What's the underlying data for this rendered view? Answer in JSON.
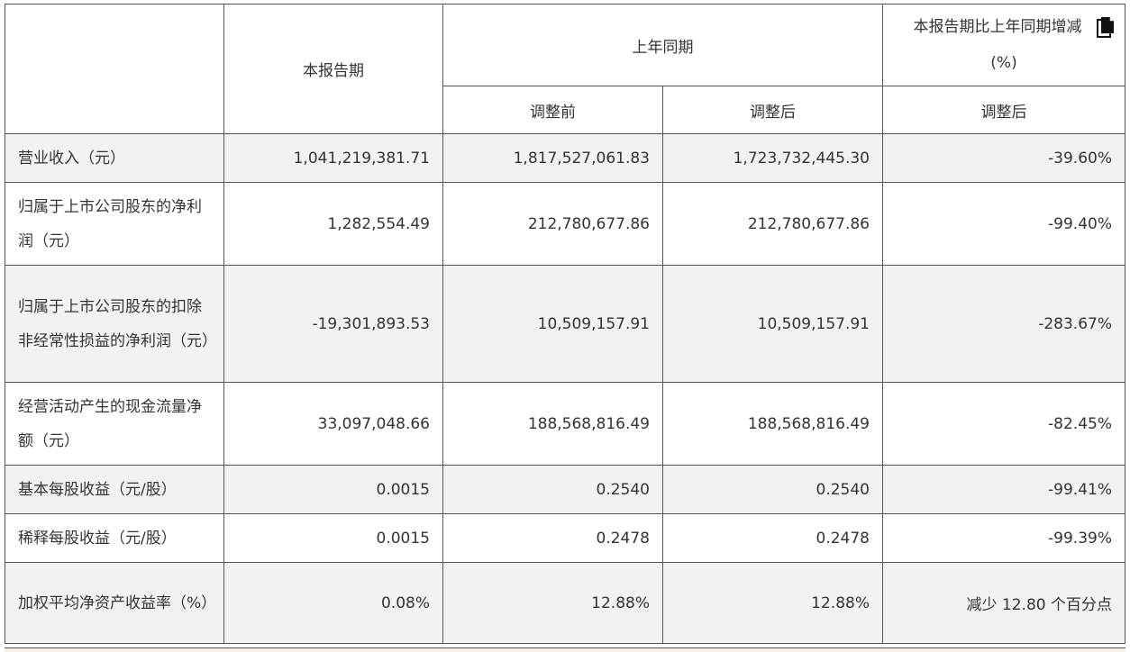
{
  "header": {
    "current_period": "本报告期",
    "same_period_last_year": "上年同期",
    "before_adjustment": "调整前",
    "after_adjustment": "调整后",
    "yoy_change": "本报告期比上年同期增减",
    "yoy_change_unit": "(%)",
    "yoy_after_adjustment": "调整后"
  },
  "rows": [
    {
      "label": "营业收入（元）",
      "current": "1,041,219,381.71",
      "prev_before": "1,817,527,061.83",
      "prev_after": "1,723,732,445.30",
      "change": "-39.60%"
    },
    {
      "label": "归属于上市公司股东的净利润（元）",
      "current": "1,282,554.49",
      "prev_before": "212,780,677.86",
      "prev_after": "212,780,677.86",
      "change": "-99.40%"
    },
    {
      "label": "归属于上市公司股东的扣除非经常性损益的净利润（元）",
      "current": "-19,301,893.53",
      "prev_before": "10,509,157.91",
      "prev_after": "10,509,157.91",
      "change": "-283.67%"
    },
    {
      "label": "经营活动产生的现金流量净额（元）",
      "current": "33,097,048.66",
      "prev_before": "188,568,816.49",
      "prev_after": "188,568,816.49",
      "change": "-82.45%"
    },
    {
      "label": "基本每股收益（元/股）",
      "current": "0.0015",
      "prev_before": "0.2540",
      "prev_after": "0.2540",
      "change": "-99.41%"
    },
    {
      "label": "稀释每股收益（元/股）",
      "current": "0.0015",
      "prev_before": "0.2478",
      "prev_after": "0.2478",
      "change": "-99.39%"
    },
    {
      "label": "加权平均净资产收益率（%）",
      "current": "0.08%",
      "prev_before": "12.88%",
      "prev_after": "12.88%",
      "change": "减少 12.80 个百分点"
    }
  ],
  "icons": {
    "copy": "copy-icon"
  }
}
